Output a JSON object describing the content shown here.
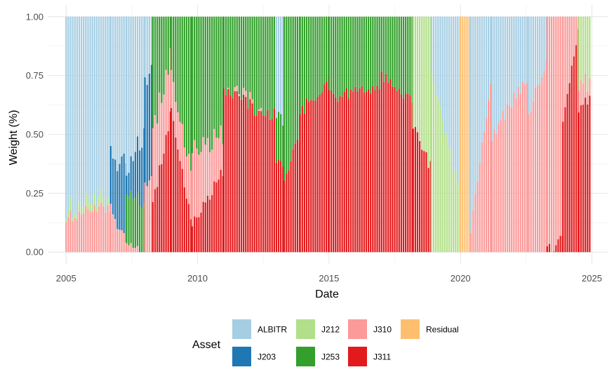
{
  "chart_data": {
    "type": "bar",
    "stacked": true,
    "xlabel": "Date",
    "ylabel": "Weight (%)",
    "legend_title": "Asset",
    "legend_position": "bottom",
    "grid": true,
    "xlim": [
      2004.3,
      2025.6
    ],
    "ylim": [
      -0.05,
      1.05
    ],
    "x_ticks": [
      2005,
      2010,
      2015,
      2020,
      2025
    ],
    "x_tick_labels": [
      "2005",
      "2010",
      "2015",
      "2020",
      "2025"
    ],
    "y_ticks": [
      0,
      0.25,
      0.5,
      0.75,
      1.0
    ],
    "y_tick_labels": [
      "0.00",
      "0.25",
      "0.50",
      "0.75",
      "1.00"
    ],
    "series": [
      {
        "name": "ALBITR",
        "color": "#A6CEE3"
      },
      {
        "name": "J203",
        "color": "#1F78B4"
      },
      {
        "name": "J212",
        "color": "#B2DF8A"
      },
      {
        "name": "J253",
        "color": "#33A02C"
      },
      {
        "name": "J310",
        "color": "#FB9A99"
      },
      {
        "name": "J311",
        "color": "#E31A1C"
      },
      {
        "name": "Residual",
        "color": "#FDBF6F"
      }
    ],
    "stack_order": [
      "J311",
      "J310",
      "J253",
      "J212",
      "J203",
      "ALBITR",
      "Residual"
    ],
    "segments": [
      {
        "x0": 2005.0,
        "x1": 2006.7,
        "comp": {
          "J310": [
            0.14,
            0.2
          ],
          "J212": 0.03,
          "ALBITR": "rest"
        }
      },
      {
        "x0": 2006.7,
        "x1": 2007.3,
        "comp": {
          "J310": [
            0.18,
            0.03
          ],
          "J203": [
            0.22,
            0.33
          ],
          "ALBITR": "rest"
        }
      },
      {
        "x0": 2007.3,
        "x1": 2008.0,
        "comp": {
          "J310": [
            0.03,
            0.0
          ],
          "J253": [
            0.2,
            0.22
          ],
          "J203": [
            0.07,
            0.33
          ],
          "ALBITR": "rest"
        }
      },
      {
        "x0": 2008.0,
        "x1": 2008.3,
        "comp": {
          "J310": 0.3,
          "J203": 0.45,
          "ALBITR": "rest"
        }
      },
      {
        "x0": 2008.3,
        "x1": 2009.0,
        "comp": {
          "J311": [
            0.2,
            0.6
          ],
          "J310": [
            0.3,
            0.25
          ],
          "J253": "rest"
        }
      },
      {
        "x0": 2009.0,
        "x1": 2009.8,
        "comp": {
          "J311": [
            0.6,
            0.1
          ],
          "J310": [
            0.15,
            0.2
          ],
          "J253": "rest"
        }
      },
      {
        "x0": 2009.8,
        "x1": 2011.0,
        "comp": {
          "J311": [
            0.12,
            0.35
          ],
          "J310": [
            0.32,
            0.15
          ],
          "J253": "rest"
        }
      },
      {
        "x0": 2011.0,
        "x1": 2012.5,
        "comp": {
          "J311": [
            0.7,
            0.58
          ],
          "J310": [
            0.0,
            0.0
          ],
          "J253": "rest"
        }
      },
      {
        "x0": 2012.5,
        "x1": 2013.0,
        "comp": {
          "J311": [
            0.58,
            0.6
          ],
          "J253": "rest"
        }
      },
      {
        "x0": 2013.0,
        "x1": 2013.3,
        "comp": {
          "J311": 0.37,
          "J253": 0.18,
          "ALBITR": "rest"
        }
      },
      {
        "x0": 2013.3,
        "x1": 2013.9,
        "comp": {
          "J311": [
            0.3,
            0.5
          ],
          "J253": "rest"
        }
      },
      {
        "x0": 2013.9,
        "x1": 2015.0,
        "comp": {
          "J311": [
            0.6,
            0.72
          ],
          "J253": "rest"
        }
      },
      {
        "x0": 2015.0,
        "x1": 2017.0,
        "comp": {
          "J311": [
            0.66,
            0.7
          ],
          "J253": "rest"
        }
      },
      {
        "x0": 2017.0,
        "x1": 2018.2,
        "comp": {
          "J311": [
            0.74,
            0.65
          ],
          "J253": "rest"
        }
      },
      {
        "x0": 2018.2,
        "x1": 2018.9,
        "comp": {
          "J311": [
            0.55,
            0.35
          ],
          "J212": "rest"
        }
      },
      {
        "x0": 2018.9,
        "x1": 2020.0,
        "comp": {
          "J212": [
            0.75,
            0.25
          ],
          "ALBITR": "rest"
        }
      },
      {
        "x0": 2020.0,
        "x1": 2020.4,
        "comp": {
          "Residual": 1.0
        }
      },
      {
        "x0": 2020.4,
        "x1": 2021.2,
        "comp": {
          "J310": [
            0.1,
            0.75
          ],
          "ALBITR": "rest"
        }
      },
      {
        "x0": 2021.2,
        "x1": 2022.6,
        "comp": {
          "J310": [
            0.5,
            0.75
          ],
          "ALBITR": "rest"
        }
      },
      {
        "x0": 2022.6,
        "x1": 2023.3,
        "comp": {
          "J310": [
            0.6,
            0.8
          ],
          "ALBITR": "rest"
        }
      },
      {
        "x0": 2023.3,
        "x1": 2023.9,
        "comp": {
          "J311": [
            0.0,
            0.05
          ],
          "J310": "rest"
        }
      },
      {
        "x0": 2023.9,
        "x1": 2024.5,
        "comp": {
          "J311": [
            0.55,
            0.95
          ],
          "J310": "rest"
        }
      },
      {
        "x0": 2024.5,
        "x1": 2025.0,
        "comp": {
          "J311": [
            0.6,
            0.68
          ],
          "J310": [
            0.1,
            0.07
          ],
          "J212": "rest"
        }
      }
    ]
  }
}
